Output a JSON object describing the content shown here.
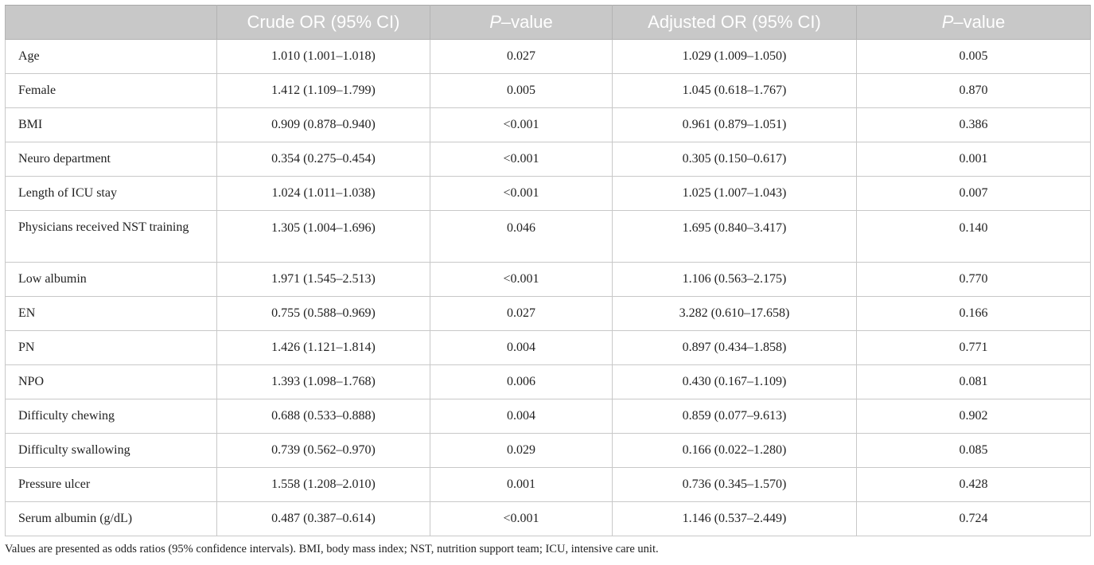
{
  "table": {
    "headers": [
      {
        "text": "",
        "italic_prefix": ""
      },
      {
        "text": "Crude OR (95% CI)",
        "italic_prefix": ""
      },
      {
        "text": "–value",
        "italic_prefix": "P"
      },
      {
        "text": "Adjusted OR (95% CI)",
        "italic_prefix": ""
      },
      {
        "text": "–value",
        "italic_prefix": "P"
      }
    ],
    "rows": [
      {
        "label": "Age",
        "crude_or": "1.010 (1.001–1.018)",
        "crude_p": "0.027",
        "adj_or": "1.029 (1.009–1.050)",
        "adj_p": "0.005"
      },
      {
        "label": "Female",
        "crude_or": "1.412 (1.109–1.799)",
        "crude_p": "0.005",
        "adj_or": "1.045 (0.618–1.767)",
        "adj_p": "0.870"
      },
      {
        "label": "BMI",
        "crude_or": "0.909 (0.878–0.940)",
        "crude_p": "<0.001",
        "adj_or": "0.961 (0.879–1.051)",
        "adj_p": "0.386"
      },
      {
        "label": "Neuro department",
        "crude_or": "0.354 (0.275–0.454)",
        "crude_p": "<0.001",
        "adj_or": "0.305 (0.150–0.617)",
        "adj_p": "0.001"
      },
      {
        "label": "Length of ICU stay",
        "crude_or": "1.024 (1.011–1.038)",
        "crude_p": "<0.001",
        "adj_or": "1.025 (1.007–1.043)",
        "adj_p": "0.007"
      },
      {
        "label": "Physicians received NST training",
        "crude_or": "1.305 (1.004–1.696)",
        "crude_p": "0.046",
        "adj_or": "1.695 (0.840–3.417)",
        "adj_p": "0.140"
      },
      {
        "label": "Low albumin",
        "crude_or": "1.971 (1.545–2.513)",
        "crude_p": "<0.001",
        "adj_or": "1.106 (0.563–2.175)",
        "adj_p": "0.770"
      },
      {
        "label": "EN",
        "crude_or": "0.755 (0.588–0.969)",
        "crude_p": "0.027",
        "adj_or": "3.282 (0.610–17.658)",
        "adj_p": "0.166"
      },
      {
        "label": "PN",
        "crude_or": "1.426 (1.121–1.814)",
        "crude_p": "0.004",
        "adj_or": "0.897 (0.434–1.858)",
        "adj_p": "0.771"
      },
      {
        "label": "NPO",
        "crude_or": "1.393 (1.098–1.768)",
        "crude_p": "0.006",
        "adj_or": "0.430 (0.167–1.109)",
        "adj_p": "0.081"
      },
      {
        "label": "Difficulty chewing",
        "crude_or": "0.688 (0.533–0.888)",
        "crude_p": "0.004",
        "adj_or": "0.859 (0.077–9.613)",
        "adj_p": "0.902"
      },
      {
        "label": "Difficulty swallowing",
        "crude_or": "0.739 (0.562–0.970)",
        "crude_p": "0.029",
        "adj_or": "0.166 (0.022–1.280)",
        "adj_p": "0.085"
      },
      {
        "label": "Pressure ulcer",
        "crude_or": "1.558 (1.208–2.010)",
        "crude_p": "0.001",
        "adj_or": "0.736 (0.345–1.570)",
        "adj_p": "0.428"
      },
      {
        "label": "Serum albumin (g/dL)",
        "crude_or": "0.487 (0.387–0.614)",
        "crude_p": "<0.001",
        "adj_or": "1.146 (0.537–2.449)",
        "adj_p": "0.724"
      }
    ]
  },
  "footnote": "Values are presented as odds ratios (95% confidence intervals). BMI, body mass index; NST, nutrition support team; ICU, intensive care unit.",
  "colors": {
    "header_bg": "#c8c8c8",
    "header_text": "#ffffff",
    "border": "#c8c8c8",
    "body_text": "#222222"
  }
}
